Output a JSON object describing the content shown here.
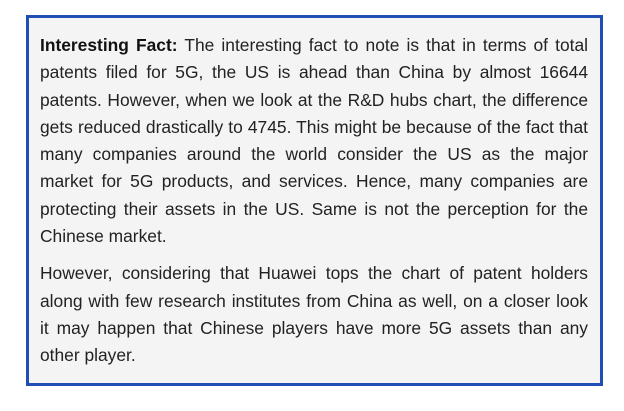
{
  "fact_box": {
    "lead_label": "Interesting Fact:",
    "paragraph_1": "The interesting fact to note is that in terms of total patents filed for 5G, the US is ahead than China by almost 16644 patents. However, when we look at the R&D hubs chart, the difference gets reduced drastically to 4745. This might be because of the fact that many companies around the world consider the US as the major market for 5G products, and services. Hence, many companies are protecting their assets in the US. Same is not the perception for the Chinese market.",
    "paragraph_2": "However, considering that Huawei tops the chart of patent holders along with few research institutes from China as well, on a closer look it may happen that Chinese players have more 5G assets than any other player."
  },
  "colors": {
    "border": "#1f4fb4",
    "background": "#f4f4f4",
    "text": "#222222"
  }
}
